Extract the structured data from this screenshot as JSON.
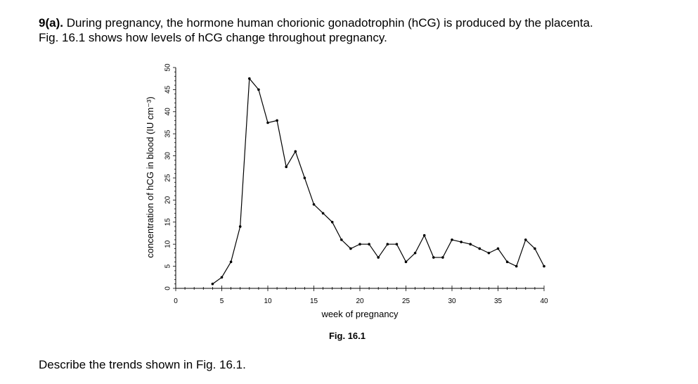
{
  "question": {
    "number": "9(a).",
    "line1": "During pregnancy, the hormone human chorionic gonadotrophin (hCG) is produced by the placenta.",
    "line2": "Fig. 16.1 shows how levels of hCG change throughout pregnancy."
  },
  "prompt": "Describe the trends shown in Fig. 16.1.",
  "chart_data": {
    "type": "line",
    "caption": "Fig. 16.1",
    "xlabel": "week of pregnancy",
    "ylabel": "concentration of hCG in blood (IU cm⁻³)",
    "xlim": [
      0,
      40
    ],
    "ylim": [
      0,
      50
    ],
    "x_ticks": [
      0,
      5,
      10,
      15,
      20,
      25,
      30,
      35,
      40
    ],
    "y_ticks": [
      0,
      5,
      10,
      15,
      20,
      25,
      30,
      35,
      40,
      45,
      50
    ],
    "grid": false,
    "series": [
      {
        "x": [
          4,
          5,
          6,
          7,
          8,
          9,
          10,
          11,
          12,
          13,
          14,
          15,
          16,
          17,
          18,
          19,
          20,
          21,
          22,
          23,
          24,
          25,
          26,
          27,
          28,
          29,
          30,
          31,
          32,
          33,
          34,
          35,
          36,
          37,
          38,
          39,
          40
        ],
        "y": [
          1,
          2.5,
          6,
          14,
          47.5,
          45,
          37.5,
          38,
          27.5,
          31,
          25,
          19,
          17,
          15,
          11,
          9,
          10,
          10,
          7,
          10,
          10,
          6,
          8,
          12,
          7,
          7,
          11,
          10.5,
          10,
          9,
          8,
          9,
          6,
          5,
          11,
          9,
          5
        ]
      }
    ]
  }
}
